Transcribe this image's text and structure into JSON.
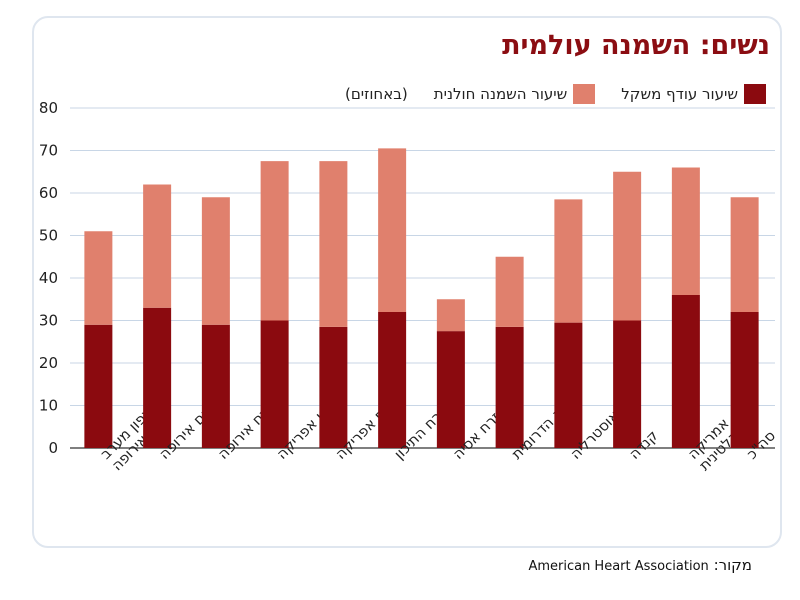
{
  "chart_data": {
    "type": "bar",
    "stacked": true,
    "title": "נשים: השמנה עולמית",
    "unit_note": "(באחוזים)",
    "categories": [
      "צפון מערב אירופה",
      "דרום אירופה",
      "מזרח אירופה",
      "צפון אפריקה",
      "דרום אפריקה",
      "המזרח התיכון",
      "מזרח אסיה",
      "אסיה הדרומית",
      "אוסטרליה",
      "קנדה",
      "אמריקה הלטינית",
      "סה\"כ"
    ],
    "series": [
      {
        "name": "שיעור עודף משקל",
        "color": "#8b0a0f",
        "values": [
          29,
          33,
          29,
          30,
          28.5,
          32,
          27.5,
          28.5,
          29.5,
          30,
          36,
          32
        ]
      },
      {
        "name": "שיעור השמנה חולנית",
        "color": "#e0806d",
        "values": [
          22,
          29,
          30,
          37.5,
          39,
          38.5,
          7.5,
          16.5,
          29,
          35,
          30,
          27
        ]
      }
    ],
    "ylim": [
      0,
      80
    ],
    "yticks": [
      0,
      10,
      20,
      30,
      40,
      50,
      60,
      70,
      80
    ],
    "grid": true,
    "legend_position": "top-right",
    "xlabel": "",
    "ylabel": ""
  },
  "source": {
    "label": "מקור:",
    "org": "American Heart Association"
  }
}
